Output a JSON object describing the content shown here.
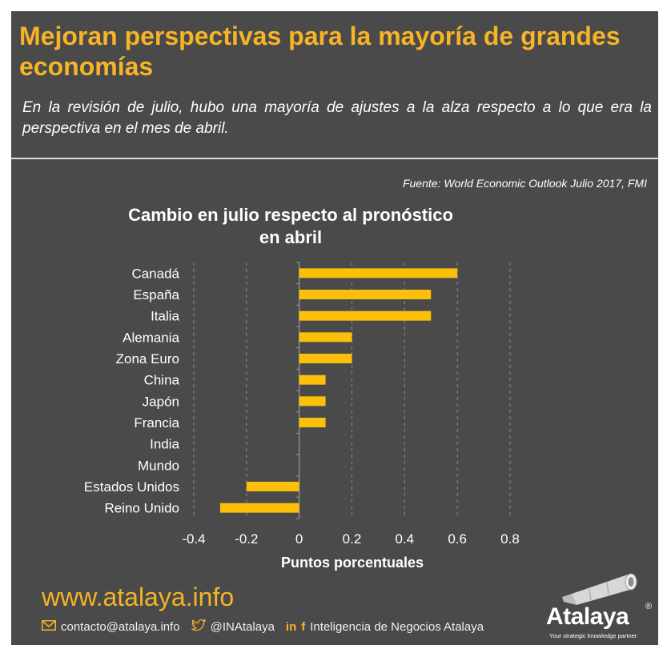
{
  "header": {
    "title": "Mejoran perspectivas para la mayoría de grandes economías",
    "subtitle": "En la revisión de julio, hubo una mayoría de ajustes a la alza respecto a lo que era la perspectiva en el mes de abril.",
    "source": "Fuente: World Economic Outlook Julio 2017, FMI"
  },
  "chart_data": {
    "type": "bar",
    "orientation": "horizontal",
    "title": "Cambio en julio respecto al pronóstico en abril",
    "xlabel": "Puntos porcentuales",
    "ylabel": "",
    "categories": [
      "Canadá",
      "España",
      "Italia",
      "Alemania",
      "Zona Euro",
      "China",
      "Japón",
      "Francia",
      "India",
      "Mundo",
      "Estados Unidos",
      "Reino Unido"
    ],
    "values": [
      0.6,
      0.5,
      0.5,
      0.2,
      0.2,
      0.1,
      0.1,
      0.1,
      0.0,
      0.0,
      -0.2,
      -0.3
    ],
    "xlim": [
      -0.4,
      0.8
    ],
    "xticks": [
      "-0.4",
      "-0.2",
      "0",
      "0.2",
      "0.4",
      "0.6",
      "0.8"
    ],
    "grid": "vertical dashed",
    "bar_color": "#fcc00a"
  },
  "footer": {
    "website": "www.atalaya.info",
    "email": "contacto@atalaya.info",
    "twitter": "@INAtalaya",
    "social_in": "in",
    "social_f": "f",
    "linkedin_facebook": "Inteligencia de Negocios Atalaya",
    "logo_word": "Atalaya",
    "logo_reg": "®",
    "logo_tagline": "Your strategic knowledge partner"
  },
  "colors": {
    "background": "#4a4a4a",
    "accent": "#f6b426",
    "text": "#ffffff"
  }
}
